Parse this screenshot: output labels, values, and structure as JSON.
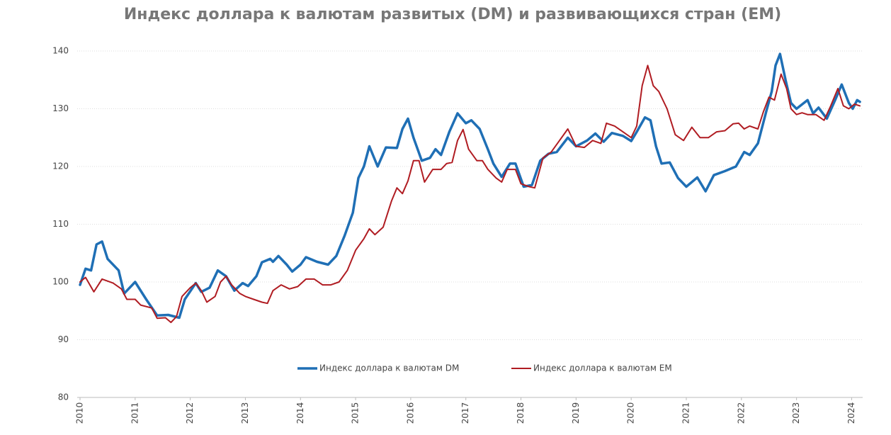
{
  "chart_data": {
    "type": "line",
    "title": "Индекс доллара к валютам развитых (DM) и развивающихся стран (EM)",
    "xlim": [
      2010,
      2024.2
    ],
    "xticks": [
      2010,
      2011,
      2012,
      2013,
      2014,
      2015,
      2016,
      2017,
      2018,
      2019,
      2020,
      2021,
      2022,
      2023,
      2024
    ],
    "ylim": [
      80,
      140
    ],
    "yticks": [
      80,
      90,
      100,
      110,
      120,
      130,
      140
    ],
    "grid": true,
    "legend": "bottom",
    "series": [
      {
        "name": "Индекс доллара к валютам DM",
        "color": "#1f6fb5",
        "width": 3.5,
        "x": [
          2010.0,
          2010.1,
          2010.2,
          2010.3,
          2010.4,
          2010.5,
          2010.7,
          2010.8,
          2011.0,
          2011.2,
          2011.4,
          2011.6,
          2011.8,
          2011.9,
          2012.1,
          2012.2,
          2012.35,
          2012.5,
          2012.65,
          2012.8,
          2012.95,
          2013.05,
          2013.2,
          2013.3,
          2013.45,
          2013.5,
          2013.6,
          2013.75,
          2013.85,
          2014.0,
          2014.1,
          2014.3,
          2014.5,
          2014.65,
          2014.8,
          2014.95,
          2015.05,
          2015.15,
          2015.25,
          2015.4,
          2015.55,
          2015.75,
          2015.85,
          2015.95,
          2016.05,
          2016.2,
          2016.35,
          2016.45,
          2016.55,
          2016.7,
          2016.85,
          2017.0,
          2017.1,
          2017.25,
          2017.4,
          2017.5,
          2017.65,
          2017.8,
          2017.9,
          2018.05,
          2018.2,
          2018.35,
          2018.5,
          2018.65,
          2018.85,
          2019.0,
          2019.2,
          2019.35,
          2019.5,
          2019.65,
          2019.85,
          2020.0,
          2020.1,
          2020.25,
          2020.35,
          2020.45,
          2020.55,
          2020.7,
          2020.85,
          2021.0,
          2021.2,
          2021.35,
          2021.5,
          2021.7,
          2021.9,
          2022.05,
          2022.15,
          2022.3,
          2022.45,
          2022.55,
          2022.62,
          2022.7,
          2022.8,
          2022.9,
          2023.0,
          2023.2,
          2023.3,
          2023.4,
          2023.55,
          2023.7,
          2023.82,
          2023.95,
          2024.02,
          2024.1,
          2024.15
        ],
        "values": [
          99.5,
          102.3,
          102,
          106.5,
          107,
          104,
          102,
          98,
          100,
          97,
          94.2,
          94.3,
          93.8,
          97,
          99.8,
          98.3,
          99,
          102,
          101,
          98.5,
          99.8,
          99.3,
          101,
          103.4,
          104,
          103.5,
          104.5,
          103,
          101.8,
          103,
          104.3,
          103.5,
          103,
          104.5,
          108,
          112,
          118,
          120,
          123.5,
          120,
          123.3,
          123.2,
          126.5,
          128.3,
          125,
          121,
          121.5,
          123,
          122,
          126,
          129.2,
          127.5,
          128,
          126.5,
          123,
          120.5,
          118.2,
          120.5,
          120.5,
          116.5,
          116.8,
          121,
          122.2,
          122.5,
          125,
          123.5,
          124.5,
          125.7,
          124.3,
          125.8,
          125.3,
          124.4,
          126,
          128.5,
          128,
          123.5,
          120.5,
          120.7,
          118,
          116.5,
          118.1,
          115.7,
          118.5,
          119.2,
          120,
          122.5,
          122,
          124,
          129.5,
          133,
          137.5,
          139.5,
          135,
          131,
          130,
          131.5,
          129.2,
          130.2,
          128.3,
          131.5,
          134.2,
          131,
          130,
          131.5,
          131.2
        ]
      },
      {
        "name": "Индекс доллара к валютам EM",
        "color": "#b01c22",
        "width": 2,
        "x": [
          2010.0,
          2010.1,
          2010.25,
          2010.4,
          2010.6,
          2010.75,
          2010.85,
          2011.0,
          2011.1,
          2011.3,
          2011.4,
          2011.55,
          2011.65,
          2011.75,
          2011.85,
          2012.0,
          2012.1,
          2012.2,
          2012.3,
          2012.45,
          2012.55,
          2012.65,
          2012.75,
          2012.9,
          2013.0,
          2013.15,
          2013.3,
          2013.4,
          2013.5,
          2013.65,
          2013.8,
          2013.95,
          2014.1,
          2014.25,
          2014.4,
          2014.55,
          2014.7,
          2014.85,
          2015.0,
          2015.15,
          2015.25,
          2015.35,
          2015.5,
          2015.65,
          2015.75,
          2015.85,
          2015.95,
          2016.05,
          2016.15,
          2016.25,
          2016.4,
          2016.55,
          2016.65,
          2016.75,
          2016.85,
          2016.95,
          2017.05,
          2017.2,
          2017.3,
          2017.4,
          2017.55,
          2017.65,
          2017.75,
          2017.9,
          2018.0,
          2018.15,
          2018.25,
          2018.4,
          2018.55,
          2018.7,
          2018.85,
          2019.0,
          2019.15,
          2019.3,
          2019.45,
          2019.55,
          2019.7,
          2019.85,
          2020.0,
          2020.1,
          2020.2,
          2020.3,
          2020.4,
          2020.5,
          2020.65,
          2020.8,
          2020.95,
          2021.1,
          2021.25,
          2021.4,
          2021.55,
          2021.7,
          2021.85,
          2021.95,
          2022.05,
          2022.15,
          2022.3,
          2022.4,
          2022.5,
          2022.6,
          2022.72,
          2022.82,
          2022.9,
          2023.0,
          2023.1,
          2023.2,
          2023.35,
          2023.5,
          2023.62,
          2023.75,
          2023.85,
          2023.95,
          2024.05,
          2024.15
        ],
        "values": [
          100,
          100.8,
          98.3,
          100.5,
          99.8,
          98.8,
          97,
          97,
          96,
          95.5,
          93.7,
          93.8,
          93,
          94,
          97.5,
          99,
          99.8,
          98.5,
          96.5,
          97.5,
          100,
          101,
          99.5,
          98,
          97.5,
          97,
          96.5,
          96.3,
          98.5,
          99.5,
          98.8,
          99.2,
          100.5,
          100.5,
          99.5,
          99.5,
          100,
          102,
          105.5,
          107.5,
          109.2,
          108.2,
          109.5,
          114,
          116.3,
          115.3,
          117.5,
          121,
          121,
          117.3,
          119.5,
          119.5,
          120.5,
          120.7,
          124.5,
          126.4,
          123,
          121,
          121,
          119.5,
          118,
          117.3,
          119.5,
          119.5,
          117,
          116.5,
          116.3,
          121.5,
          122.5,
          124.5,
          126.5,
          123.5,
          123.3,
          124.5,
          124,
          127.5,
          127,
          126,
          125,
          127,
          134,
          137.5,
          134,
          133,
          130,
          125.5,
          124.5,
          126.8,
          125,
          125,
          126,
          126.2,
          127.4,
          127.5,
          126.5,
          127,
          126.5,
          129.5,
          132,
          131.5,
          136,
          133.5,
          130,
          129,
          129.3,
          129,
          129,
          128,
          130.5,
          133.5,
          130.5,
          130,
          130.8,
          130.5
        ]
      }
    ]
  }
}
